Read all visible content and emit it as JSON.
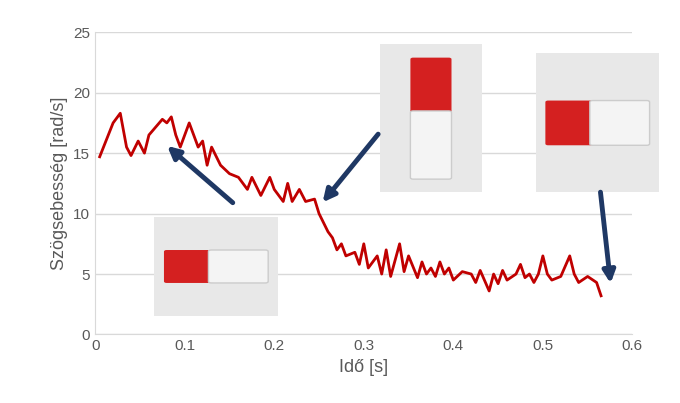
{
  "chart_data": {
    "type": "line",
    "x_label": "Idő [s]",
    "y_label": "Szögsebesség [rad/s]",
    "x": [
      0.005,
      0.02,
      0.028,
      0.035,
      0.04,
      0.048,
      0.055,
      0.06,
      0.075,
      0.08,
      0.085,
      0.09,
      0.095,
      0.105,
      0.115,
      0.12,
      0.125,
      0.13,
      0.14,
      0.15,
      0.16,
      0.17,
      0.175,
      0.185,
      0.195,
      0.2,
      0.21,
      0.215,
      0.22,
      0.228,
      0.235,
      0.245,
      0.25,
      0.26,
      0.265,
      0.27,
      0.275,
      0.28,
      0.29,
      0.295,
      0.3,
      0.305,
      0.31,
      0.315,
      0.32,
      0.325,
      0.33,
      0.34,
      0.345,
      0.35,
      0.36,
      0.365,
      0.37,
      0.375,
      0.38,
      0.385,
      0.39,
      0.395,
      0.4,
      0.41,
      0.42,
      0.425,
      0.43,
      0.44,
      0.445,
      0.45,
      0.455,
      0.46,
      0.47,
      0.475,
      0.48,
      0.485,
      0.49,
      0.495,
      0.5,
      0.505,
      0.51,
      0.52,
      0.53,
      0.535,
      0.54,
      0.55,
      0.56,
      0.565
    ],
    "values": [
      14.7,
      17.5,
      18.3,
      15.5,
      14.8,
      16,
      15,
      16.5,
      17.8,
      17.5,
      18,
      16.5,
      15.5,
      17.5,
      15.5,
      16,
      14,
      15.5,
      14,
      13.3,
      13,
      12,
      13,
      11.5,
      13,
      12,
      11,
      12.5,
      11,
      12,
      11,
      11.2,
      10,
      8.5,
      8,
      7,
      7.5,
      6.5,
      6.8,
      5.8,
      7.5,
      5.5,
      6,
      6.5,
      5,
      7,
      4.8,
      7.5,
      5.2,
      6.5,
      4.7,
      6,
      5,
      5.5,
      4.8,
      6,
      5,
      5.5,
      4.5,
      5.2,
      5,
      4.3,
      5.3,
      3.6,
      5,
      4.2,
      5.3,
      4.5,
      5,
      5.8,
      4.7,
      5,
      4.3,
      5,
      6.5,
      5,
      4.5,
      4.8,
      6.5,
      5,
      4.3,
      4.8,
      4.3,
      3.2
    ],
    "color": "#c00000",
    "xlim": [
      0,
      0.6
    ],
    "xticks": [
      0,
      0.1,
      0.2,
      0.3,
      0.4,
      0.5,
      0.6
    ],
    "ylim": [
      0,
      25
    ],
    "yticks": [
      0,
      5,
      10,
      15,
      20,
      25
    ],
    "grid": true
  }
}
